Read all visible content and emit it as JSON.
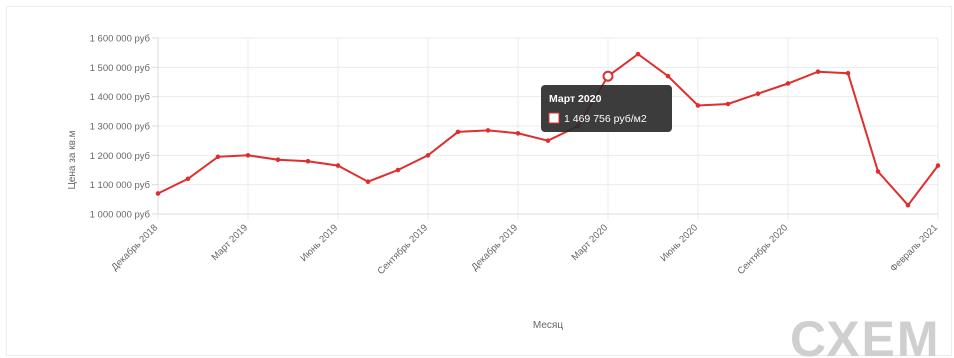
{
  "chart_data": {
    "type": "line",
    "xlabel": "Месяц",
    "ylabel": "Цена за кв.м",
    "ylim": [
      1000000,
      1600000
    ],
    "y_ticks": [
      "1 600 000 руб",
      "1 500 000 руб",
      "1 400 000 руб",
      "1 300 000 руб",
      "1 200 000 руб",
      "1 100 000 руб",
      "1 000 000 руб"
    ],
    "x_tick_labels": [
      "Декабрь 2018",
      "Март 2019",
      "Июнь 2019",
      "Сентябрь 2019",
      "Декабрь 2019",
      "Март 2020",
      "Июнь 2020",
      "Сентябрь 2020",
      "Февраль 2021"
    ],
    "categories": [
      "Декабрь 2018",
      "Январь 2019",
      "Февраль 2019",
      "Март 2019",
      "Апрель 2019",
      "Май 2019",
      "Июнь 2019",
      "Июль 2019",
      "Август 2019",
      "Сентябрь 2019",
      "Октябрь 2019",
      "Ноябрь 2019",
      "Декабрь 2019",
      "Январь 2020",
      "Февраль 2020",
      "Март 2020",
      "Апрель 2020",
      "Май 2020",
      "Июнь 2020",
      "Июль 2020",
      "Август 2020",
      "Сентябрь 2020",
      "Октябрь 2020",
      "Ноябрь 2020",
      "Декабрь 2020",
      "Январь 2021",
      "Февраль 2021"
    ],
    "series": [
      {
        "values": [
          1070000,
          1120000,
          1195000,
          1200000,
          1185000,
          1180000,
          1165000,
          1110000,
          1150000,
          1200000,
          1280000,
          1285000,
          1275000,
          1250000,
          1300000,
          1469756,
          1545000,
          1470000,
          1370000,
          1375000,
          1410000,
          1445000,
          1485000,
          1480000,
          1145000,
          1030000,
          1165000
        ],
        "color": "#e02e2e"
      }
    ],
    "grid": true,
    "tooltip": {
      "title": "Март 2020",
      "value_text": "1 469 756 руб/м2",
      "index": 15
    }
  },
  "watermark": "СХЕМ"
}
